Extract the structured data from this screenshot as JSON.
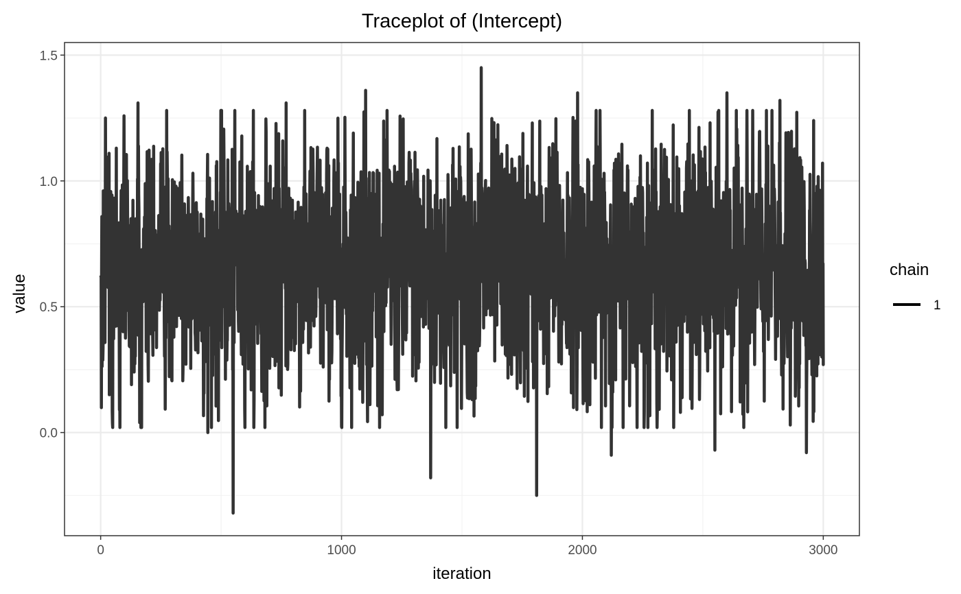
{
  "chart_data": {
    "type": "line",
    "title": "Traceplot of  (Intercept)",
    "xlabel": "iteration",
    "ylabel": "value",
    "xlim": [
      -150,
      3150
    ],
    "ylim": [
      -0.41,
      1.55
    ],
    "x_ticks": [
      0,
      1000,
      2000,
      3000
    ],
    "x_tick_labels": [
      "0",
      "1000",
      "2000",
      "3000"
    ],
    "x_minor_ticks": [
      500,
      1500,
      2500
    ],
    "y_ticks": [
      0.0,
      0.5,
      1.0,
      1.5
    ],
    "y_tick_labels": [
      "0.0",
      "0.5",
      "1.0",
      "1.5"
    ],
    "y_minor_ticks": [
      -0.25,
      0.25,
      0.75,
      1.25
    ],
    "grid": true,
    "legend": {
      "title": "chain",
      "position": "right",
      "entries": [
        "1"
      ]
    },
    "series": [
      {
        "name": "1",
        "color": "#333333",
        "n_iterations": 3000,
        "y_min": -0.32,
        "y_max": 1.45,
        "y_mean": 0.66,
        "notable_points": [
          {
            "x": 1,
            "y": 0.62
          },
          {
            "x": 20,
            "y": 1.25
          },
          {
            "x": 170,
            "y": 0.02
          },
          {
            "x": 155,
            "y": 1.31
          },
          {
            "x": 445,
            "y": 0.0
          },
          {
            "x": 550,
            "y": -0.32
          },
          {
            "x": 770,
            "y": 1.31
          },
          {
            "x": 1100,
            "y": 1.36
          },
          {
            "x": 1370,
            "y": -0.18
          },
          {
            "x": 1580,
            "y": 1.45
          },
          {
            "x": 1810,
            "y": -0.25
          },
          {
            "x": 1980,
            "y": 1.35
          },
          {
            "x": 2120,
            "y": -0.09
          },
          {
            "x": 2550,
            "y": -0.07
          },
          {
            "x": 2600,
            "y": 1.35
          },
          {
            "x": 2820,
            "y": 1.32
          },
          {
            "x": 2930,
            "y": -0.08
          },
          {
            "x": 2960,
            "y": 1.24
          },
          {
            "x": 3000,
            "y": 0.27
          }
        ]
      }
    ]
  }
}
